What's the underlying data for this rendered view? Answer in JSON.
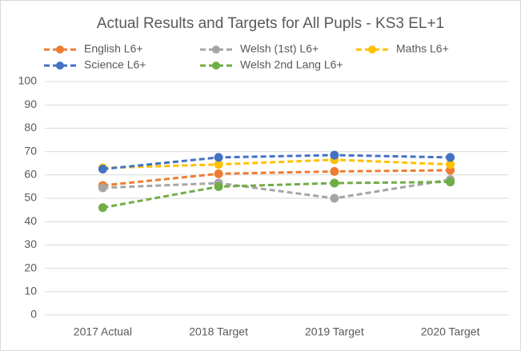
{
  "chart_data": {
    "type": "line",
    "title": "Actual Results and Targets for All Pupls - KS3 EL+1",
    "categories": [
      "2017 Actual",
      "2018 Target",
      "2019 Target",
      "2020 Target"
    ],
    "series": [
      {
        "name": "English L6+",
        "color": "#ed7d31",
        "values": [
          55.5,
          60.5,
          61.5,
          62
        ]
      },
      {
        "name": "Welsh (1st) L6+",
        "color": "#a5a5a5",
        "values": [
          54.5,
          56.5,
          50,
          58
        ]
      },
      {
        "name": "Maths L6+",
        "color": "#ffc000",
        "values": [
          63,
          64.5,
          66.5,
          64.5
        ]
      },
      {
        "name": "Science L6+",
        "color": "#4472c4",
        "values": [
          62.5,
          67.5,
          68.5,
          67.5
        ]
      },
      {
        "name": "Welsh 2nd Lang L6+",
        "color": "#70ad47",
        "values": [
          46,
          55,
          56.5,
          57
        ]
      }
    ],
    "ylim": [
      0,
      100
    ],
    "yticks": [
      0,
      10,
      20,
      30,
      40,
      50,
      60,
      70,
      80,
      90,
      100
    ],
    "grid": true,
    "legend": "top",
    "line_style": "dashed"
  }
}
